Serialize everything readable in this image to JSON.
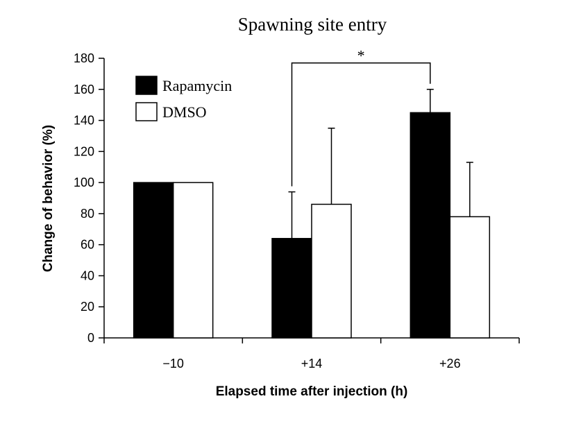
{
  "chart_data": {
    "type": "bar",
    "title": "Spawning site entry",
    "xlabel": "Elapsed time after injection (h)",
    "ylabel": "Change of behavior (%)",
    "categories": [
      "−10",
      "+14",
      "+26"
    ],
    "ylim": [
      0,
      180
    ],
    "yticks": [
      0,
      20,
      40,
      60,
      80,
      100,
      120,
      140,
      160,
      180
    ],
    "grid": false,
    "legend_position": "top-left",
    "series": [
      {
        "name": "Rapamycin",
        "color": "#000000",
        "values": [
          100,
          64,
          145
        ],
        "error_plus": [
          0,
          30,
          15
        ]
      },
      {
        "name": "DMSO",
        "color": "#ffffff",
        "values": [
          100,
          86,
          78
        ],
        "error_plus": [
          0,
          49,
          35
        ]
      }
    ],
    "annotations": [
      {
        "text": "*",
        "between": [
          "Rapamycin@+14",
          "Rapamycin@+26"
        ],
        "level": 177
      }
    ]
  }
}
